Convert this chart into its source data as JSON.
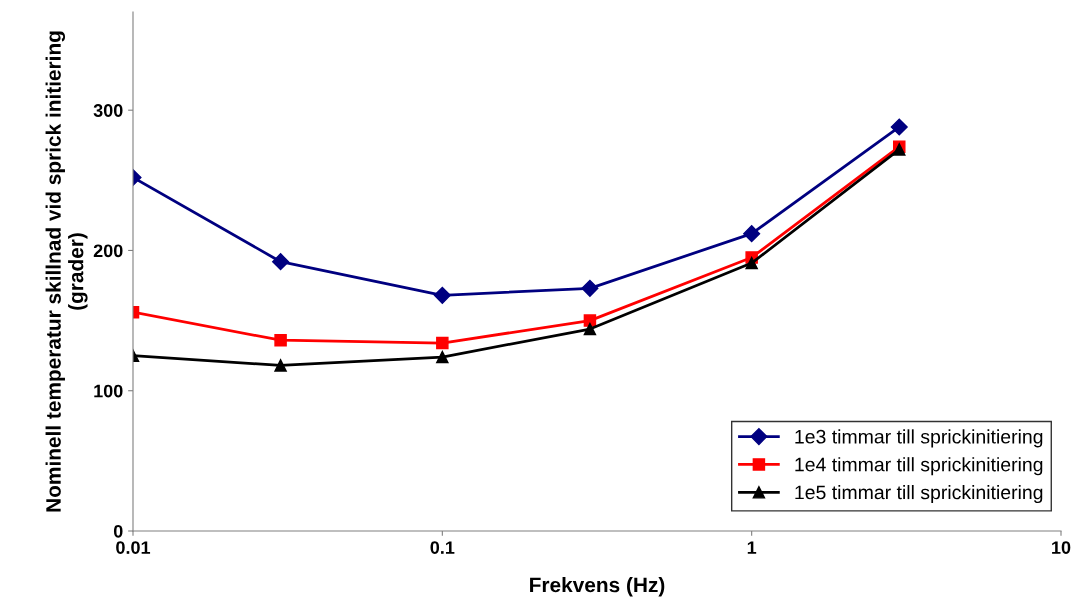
{
  "chart_data": {
    "type": "line",
    "xlabel": "Frekvens (Hz)",
    "ylabel": "Nominell temperatur skillnad vid sprick initiering (grader)",
    "x": [
      0.01,
      0.03,
      0.1,
      0.3,
      1,
      3
    ],
    "series": [
      {
        "name": "1e3 timmar till sprickinitiering",
        "color": "#000080",
        "marker": "diamond",
        "values": [
          252,
          192,
          168,
          173,
          212,
          288
        ]
      },
      {
        "name": "1e4 timmar till sprickinitiering",
        "color": "#ff0000",
        "marker": "square",
        "values": [
          156,
          136,
          134,
          150,
          195,
          274
        ]
      },
      {
        "name": "1e5 timmar till sprickinitiering",
        "color": "#000000",
        "marker": "triangle",
        "values": [
          125,
          118,
          124,
          144,
          191,
          272
        ]
      }
    ],
    "log": "x",
    "xlim": [
      0.01,
      10
    ],
    "xticks": [
      0.01,
      0.1,
      1,
      10
    ],
    "ylim": [
      0,
      370
    ],
    "yticks": [
      0,
      100,
      200,
      300
    ],
    "grid": false,
    "legend": "bottom right",
    "line_style": "solid"
  }
}
